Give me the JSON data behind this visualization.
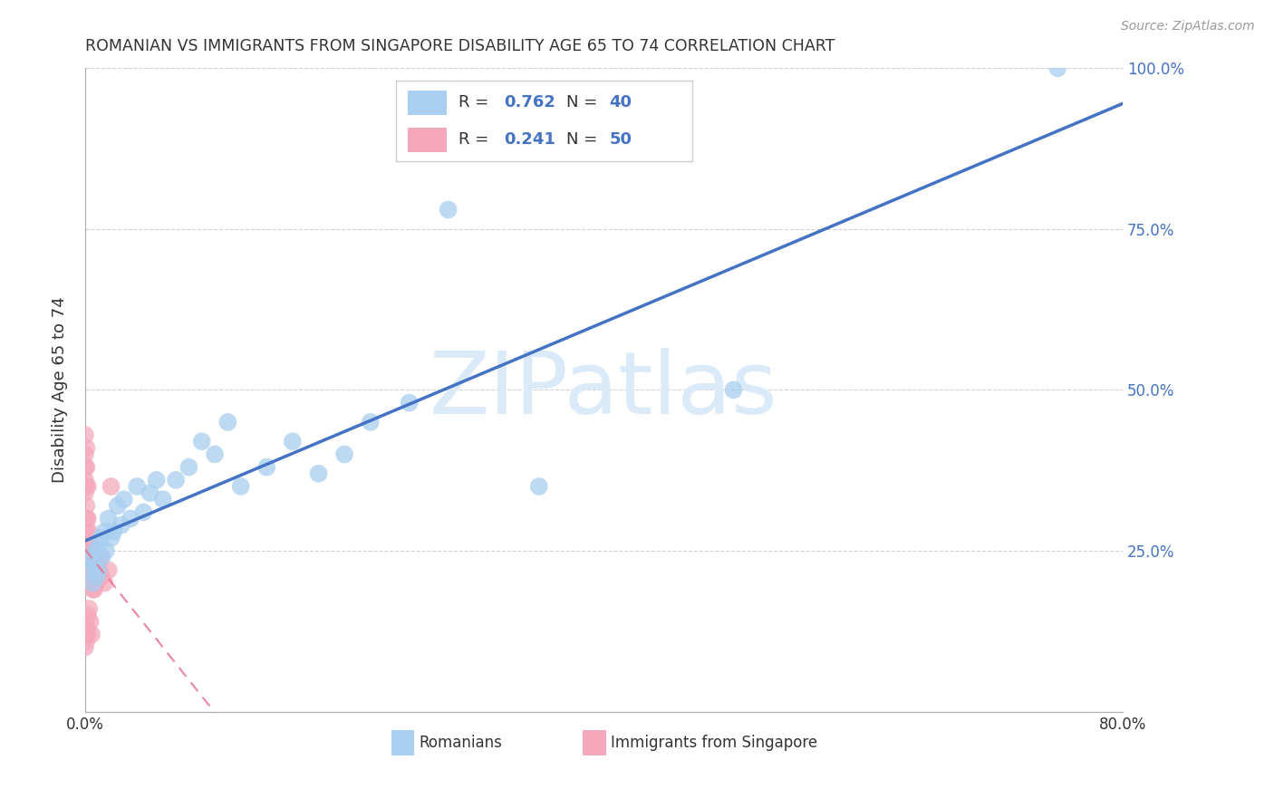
{
  "title": "ROMANIAN VS IMMIGRANTS FROM SINGAPORE DISABILITY AGE 65 TO 74 CORRELATION CHART",
  "source": "Source: ZipAtlas.com",
  "ylabel": "Disability Age 65 to 74",
  "xlim": [
    0.0,
    0.8
  ],
  "ylim": [
    0.0,
    1.0
  ],
  "blue_color": "#a8cef0",
  "pink_color": "#f5a8bc",
  "blue_line_color": "#4472c4",
  "pink_line_color": "#e87090",
  "blue_R": 0.762,
  "blue_N": 40,
  "pink_R": 0.241,
  "pink_N": 50,
  "watermark": "ZIPatlas",
  "watermark_color": "#daeaf8",
  "legend_label_blue": "Romanians",
  "legend_label_pink": "Immigrants from Singapore",
  "blue_x": [
    0.004,
    0.005,
    0.006,
    0.007,
    0.008,
    0.009,
    0.01,
    0.011,
    0.012,
    0.013,
    0.015,
    0.016,
    0.018,
    0.02,
    0.022,
    0.025,
    0.028,
    0.03,
    0.035,
    0.04,
    0.045,
    0.05,
    0.055,
    0.06,
    0.07,
    0.08,
    0.09,
    0.1,
    0.11,
    0.12,
    0.14,
    0.16,
    0.18,
    0.2,
    0.22,
    0.25,
    0.28,
    0.35,
    0.5,
    0.75
  ],
  "blue_y": [
    0.22,
    0.24,
    0.2,
    0.23,
    0.25,
    0.21,
    0.22,
    0.26,
    0.27,
    0.24,
    0.28,
    0.25,
    0.3,
    0.27,
    0.28,
    0.32,
    0.29,
    0.33,
    0.3,
    0.35,
    0.31,
    0.34,
    0.36,
    0.33,
    0.36,
    0.38,
    0.42,
    0.4,
    0.45,
    0.35,
    0.38,
    0.42,
    0.37,
    0.4,
    0.45,
    0.48,
    0.78,
    0.35,
    0.5,
    1.0
  ],
  "pink_x": [
    0.0,
    0.0,
    0.0,
    0.0,
    0.0,
    0.001,
    0.001,
    0.001,
    0.001,
    0.001,
    0.001,
    0.002,
    0.002,
    0.002,
    0.002,
    0.002,
    0.003,
    0.003,
    0.003,
    0.003,
    0.004,
    0.004,
    0.004,
    0.005,
    0.005,
    0.005,
    0.006,
    0.006,
    0.007,
    0.007,
    0.008,
    0.008,
    0.009,
    0.01,
    0.011,
    0.012,
    0.013,
    0.015,
    0.018,
    0.02,
    0.0,
    0.0,
    0.0,
    0.001,
    0.001,
    0.002,
    0.002,
    0.003,
    0.004,
    0.005
  ],
  "pink_y": [
    0.43,
    0.4,
    0.38,
    0.36,
    0.34,
    0.41,
    0.38,
    0.35,
    0.32,
    0.3,
    0.28,
    0.35,
    0.3,
    0.27,
    0.25,
    0.23,
    0.28,
    0.25,
    0.22,
    0.2,
    0.26,
    0.23,
    0.2,
    0.24,
    0.22,
    0.2,
    0.22,
    0.19,
    0.21,
    0.19,
    0.22,
    0.2,
    0.2,
    0.23,
    0.22,
    0.24,
    0.21,
    0.2,
    0.22,
    0.35,
    0.14,
    0.12,
    0.1,
    0.13,
    0.11,
    0.15,
    0.12,
    0.16,
    0.14,
    0.12
  ],
  "ytick_positions": [
    0.0,
    0.25,
    0.5,
    0.75,
    1.0
  ],
  "ytick_right_labels": [
    "",
    "25.0%",
    "50.0%",
    "75.0%",
    "100.0%"
  ],
  "grid_color": "#d0d0d0",
  "text_color": "#333333",
  "right_axis_color": "#4472c4"
}
